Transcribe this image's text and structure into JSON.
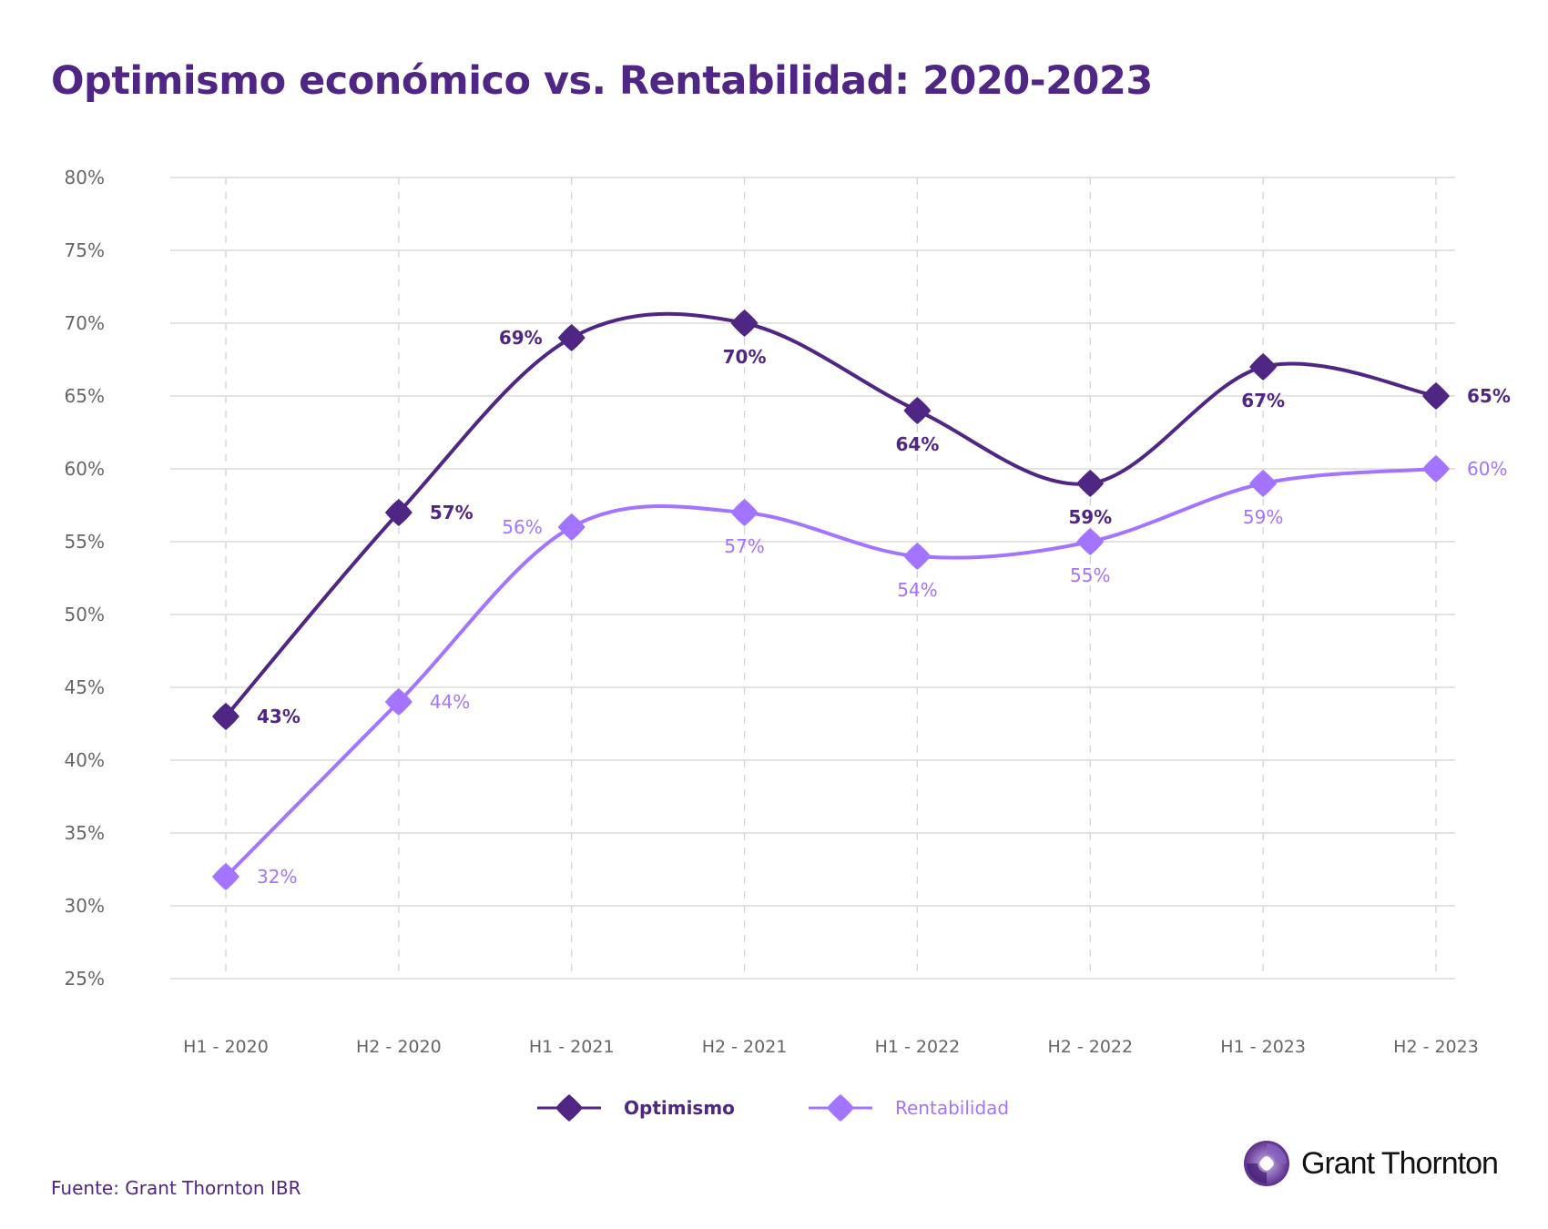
{
  "colors": {
    "optimismo": "#4f2683",
    "rentabilidad": "#a374ff",
    "grid": "#d6d3d0",
    "axis_text": "#666666"
  },
  "chart_data": {
    "type": "line",
    "title": "Optimismo económico vs. Rentabilidad: 2020-2023",
    "categories": [
      "H1 - 2020",
      "H2 - 2020",
      "H1 - 2021",
      "H2 - 2021",
      "H1 - 2022",
      "H2 - 2022",
      "H1 - 2023",
      "H2 - 2023"
    ],
    "ylim": [
      25,
      80
    ],
    "yticks": [
      "25%",
      "30%",
      "35%",
      "40%",
      "45%",
      "50%",
      "55%",
      "60%",
      "65%",
      "70%",
      "75%",
      "80%"
    ],
    "grid": true,
    "legend_placement": "bottom",
    "series": [
      {
        "name": "Optimismo",
        "values": [
          43,
          57,
          69,
          70,
          64,
          59,
          67,
          65
        ],
        "labels": [
          "43%",
          "57%",
          "69%",
          "70%",
          "64%",
          "59%",
          "67%",
          "65%"
        ]
      },
      {
        "name": "Rentabilidad",
        "values": [
          32,
          44,
          56,
          57,
          54,
          55,
          59,
          60
        ],
        "labels": [
          "32%",
          "44%",
          "56%",
          "57%",
          "54%",
          "55%",
          "59%",
          "60%"
        ]
      }
    ]
  },
  "footer": {
    "source": "Fuente: Grant Thornton IBR",
    "logo_text": "Grant Thornton"
  }
}
